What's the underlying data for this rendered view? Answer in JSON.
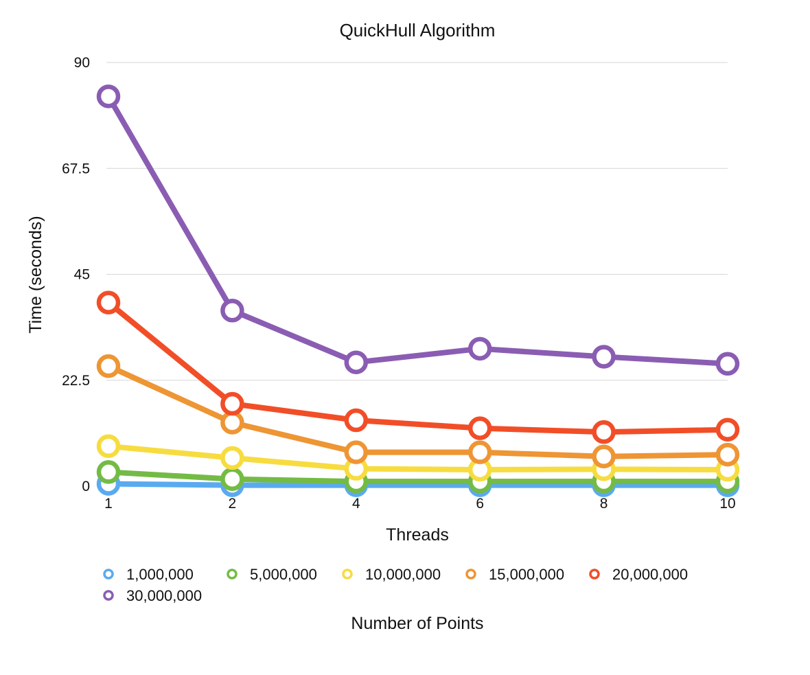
{
  "chart_data": {
    "type": "line",
    "title": "QuickHull Algorithm",
    "xlabel": "Threads",
    "ylabel": "Time (seconds)",
    "categories": [
      "1",
      "2",
      "4",
      "6",
      "8",
      "10"
    ],
    "yticks": [
      "90",
      "67.5",
      "45",
      "22.5",
      "0"
    ],
    "ylim": [
      0,
      90
    ],
    "grid": true,
    "legend_title": "Number of Points",
    "legend_position": "bottom",
    "series": [
      {
        "name": "1,000,000",
        "color": "#5aaaf0",
        "values": [
          0.5,
          0.2,
          0.2,
          0.2,
          0.2,
          0.2
        ]
      },
      {
        "name": "5,000,000",
        "color": "#74bb45",
        "values": [
          3.0,
          1.5,
          1.0,
          1.0,
          1.0,
          1.0
        ]
      },
      {
        "name": "10,000,000",
        "color": "#f7dc40",
        "values": [
          8.5,
          6.0,
          3.7,
          3.5,
          3.6,
          3.5
        ]
      },
      {
        "name": "15,000,000",
        "color": "#ee9534",
        "values": [
          25.5,
          13.5,
          7.2,
          7.2,
          6.3,
          6.7
        ]
      },
      {
        "name": "20,000,000",
        "color": "#f14e28",
        "values": [
          39.0,
          17.5,
          14.0,
          12.3,
          11.5,
          12.0
        ]
      },
      {
        "name": "30,000,000",
        "color": "#8a5db3",
        "values": [
          82.8,
          37.3,
          26.3,
          29.2,
          27.5,
          26.0
        ]
      }
    ]
  }
}
